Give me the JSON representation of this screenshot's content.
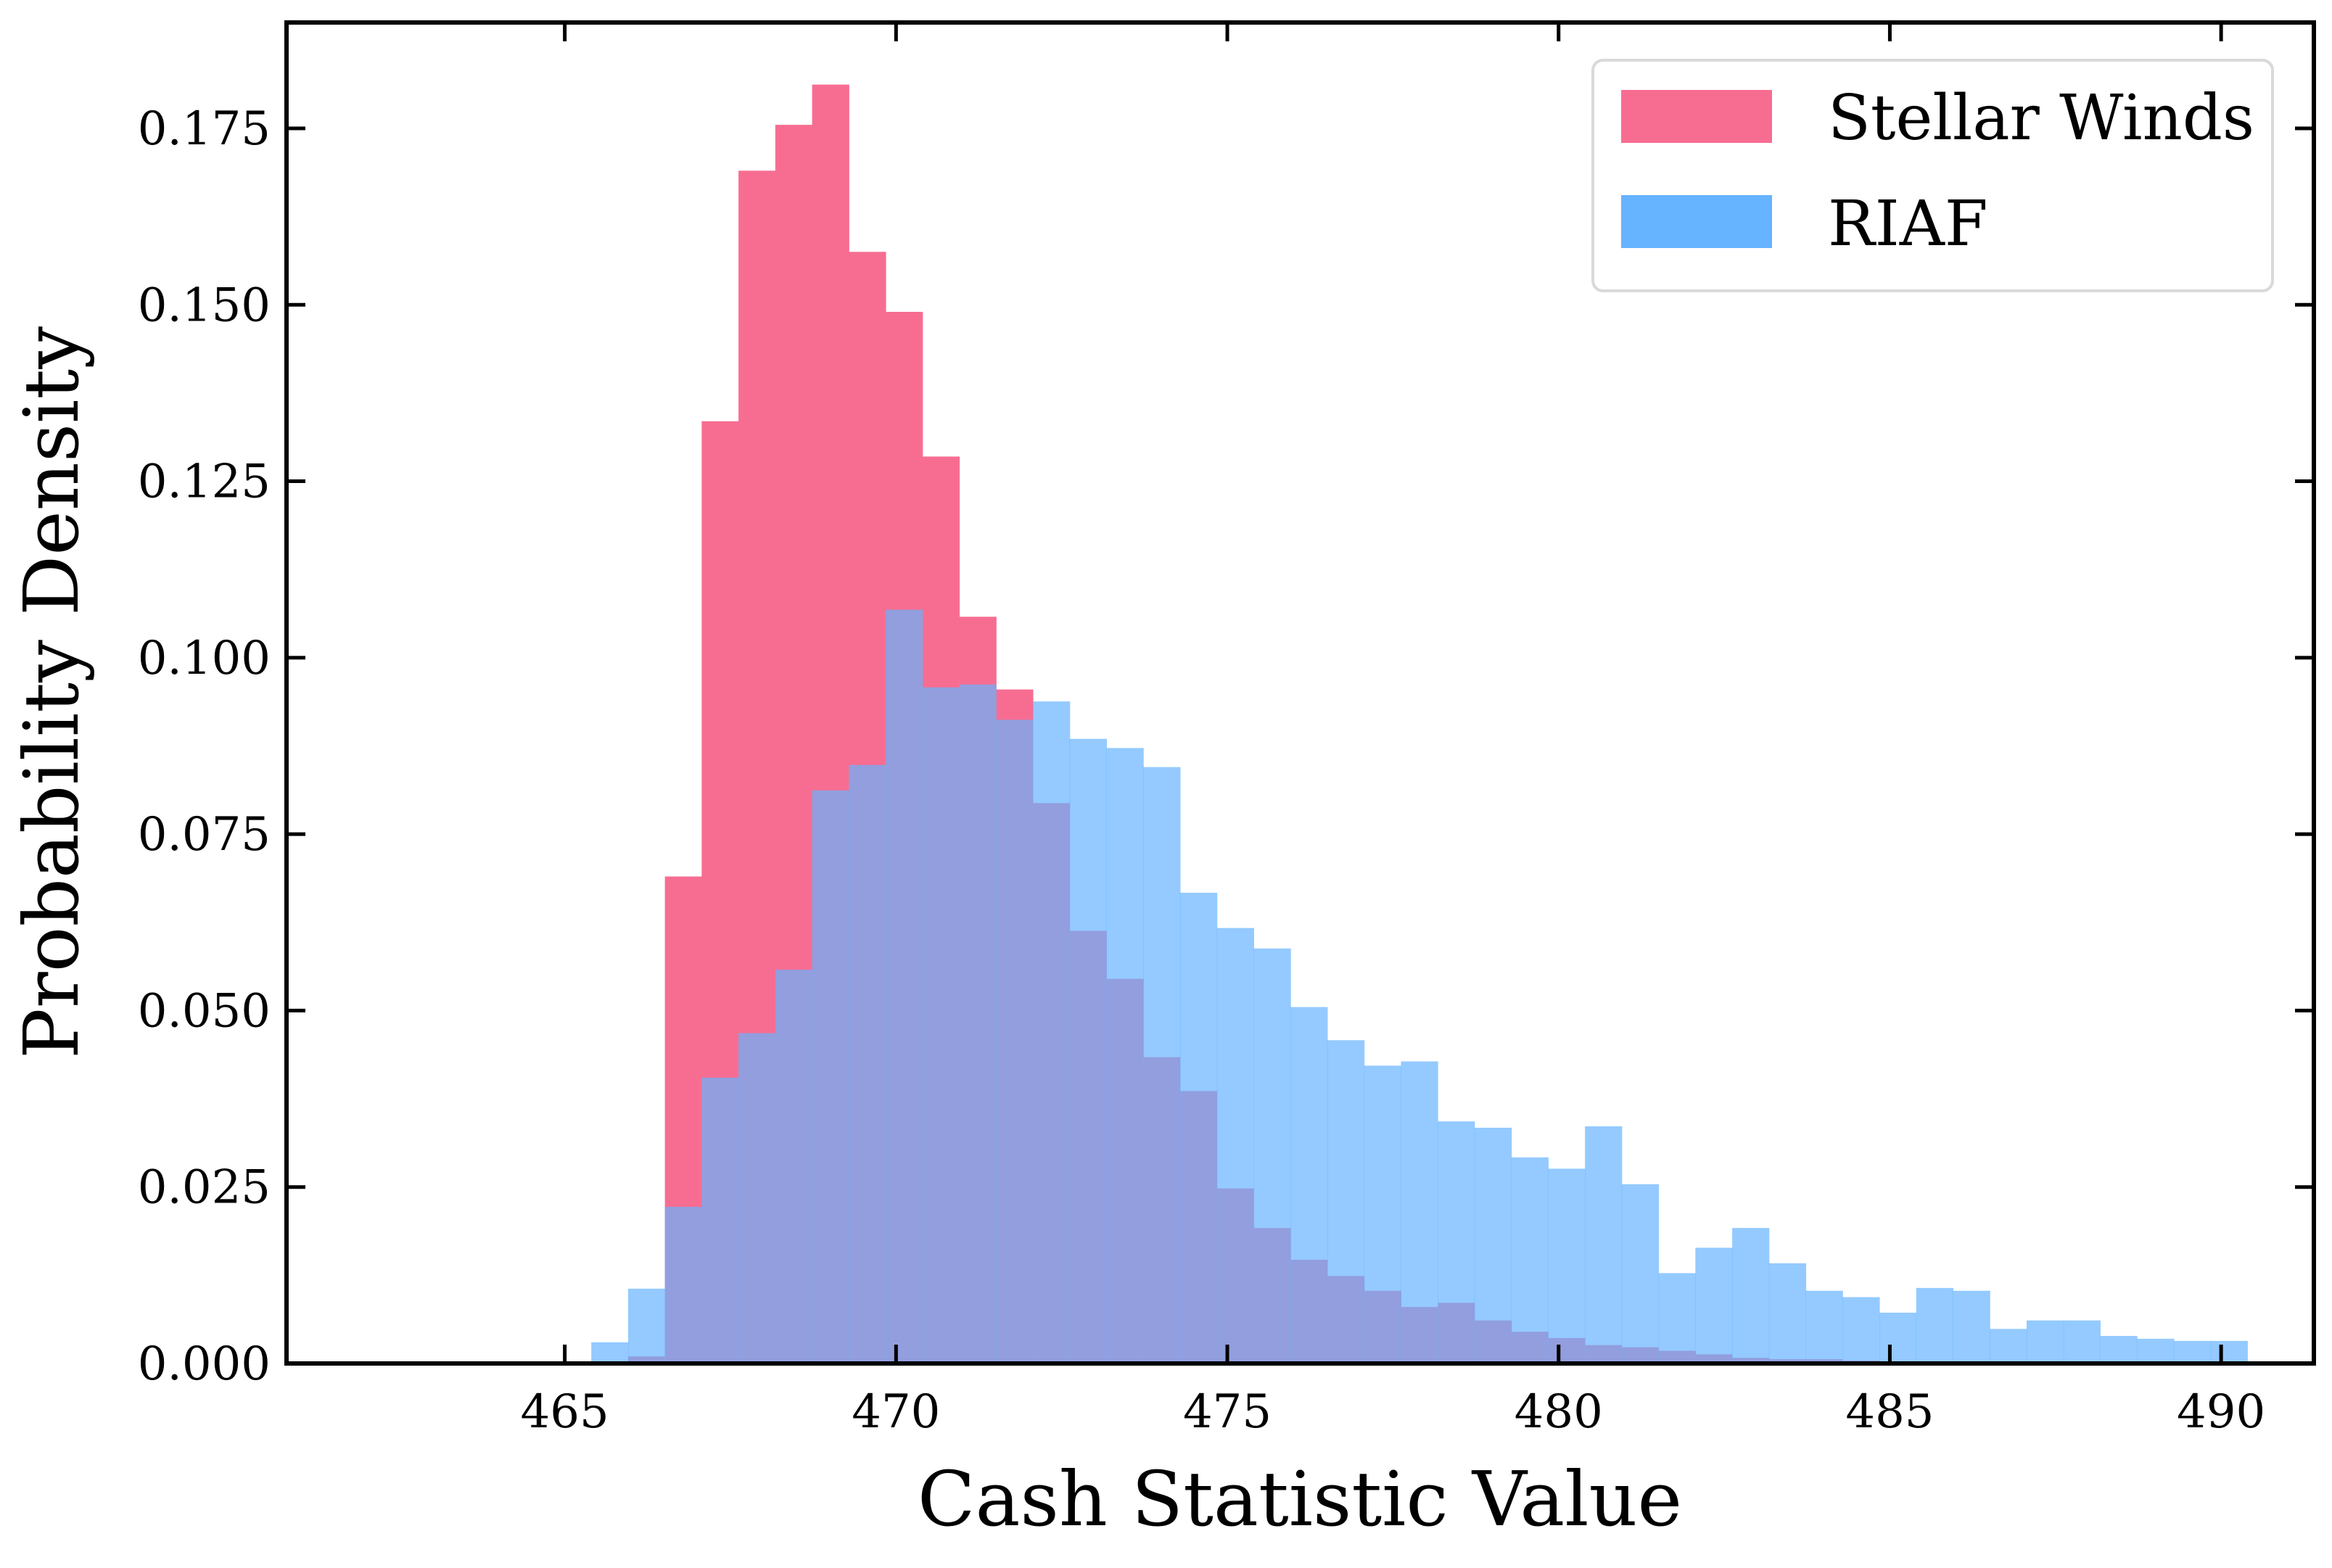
{
  "chart_data": {
    "type": "histogram",
    "title": "",
    "xlabel": "Cash Statistic Value",
    "ylabel": "Probability Density",
    "xlim": [
      460.8,
      491.4
    ],
    "ylim": [
      0,
      0.19
    ],
    "xticks": [
      465,
      470,
      475,
      480,
      485,
      490
    ],
    "xtick_labels": [
      "465",
      "470",
      "475",
      "480",
      "485",
      "490"
    ],
    "yticks": [
      0,
      0.025,
      0.05,
      0.075,
      0.1,
      0.125,
      0.15,
      0.175
    ],
    "ytick_labels": [
      "0.000",
      "0.025",
      "0.050",
      "0.075",
      "0.100",
      "0.125",
      "0.150",
      "0.175"
    ],
    "legend_position": "top-right",
    "bin_start": 465.4,
    "bin_width": 0.5555,
    "series": [
      {
        "name": "Stellar Winds",
        "color": "#f76d92",
        "values": [
          0.0,
          0.001,
          0.069,
          0.1335,
          0.169,
          0.1755,
          0.1812,
          0.1575,
          0.149,
          0.1285,
          0.1058,
          0.0955,
          0.0794,
          0.0613,
          0.0545,
          0.0434,
          0.0386,
          0.0248,
          0.0192,
          0.0147,
          0.0124,
          0.0103,
          0.008,
          0.0086,
          0.0061,
          0.0045,
          0.0036,
          0.0026,
          0.0023,
          0.0018,
          0.0013,
          0.0008,
          0.0006,
          0.0006,
          0.0004,
          0.0003,
          0.0003,
          0.0002,
          0.0002,
          0.0002,
          0.0001,
          0.0001,
          0.0001,
          0.0001,
          0.0001
        ]
      },
      {
        "name": "RIAF",
        "color": "#66b3ff",
        "values": [
          0.003,
          0.0106,
          0.0222,
          0.0405,
          0.0468,
          0.0558,
          0.0812,
          0.0848,
          0.1068,
          0.0958,
          0.0962,
          0.0912,
          0.0938,
          0.0885,
          0.0872,
          0.0845,
          0.0667,
          0.0617,
          0.0588,
          0.0505,
          0.0458,
          0.0422,
          0.0428,
          0.0343,
          0.0334,
          0.0292,
          0.0276,
          0.0336,
          0.0254,
          0.0128,
          0.0164,
          0.0192,
          0.0142,
          0.0103,
          0.0094,
          0.0072,
          0.0107,
          0.0103,
          0.0049,
          0.0061,
          0.0061,
          0.0039,
          0.0035,
          0.0032,
          0.0032
        ]
      }
    ]
  }
}
